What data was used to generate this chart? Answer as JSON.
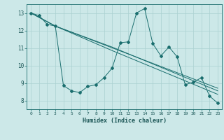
{
  "bg_color": "#cce8e8",
  "grid_color": "#aad0d0",
  "line_color": "#1a6e6e",
  "marker_color": "#1a6e6e",
  "xlabel": "Humidex (Indice chaleur)",
  "xlim": [
    -0.5,
    23.5
  ],
  "ylim": [
    7.5,
    13.5
  ],
  "yticks": [
    8,
    9,
    10,
    11,
    12,
    13
  ],
  "xticks": [
    0,
    1,
    2,
    3,
    4,
    5,
    6,
    7,
    8,
    9,
    10,
    11,
    12,
    13,
    14,
    15,
    16,
    17,
    18,
    19,
    20,
    21,
    22,
    23
  ],
  "series1_x": [
    0,
    1,
    2,
    3,
    4,
    5,
    6,
    7,
    8,
    9,
    10,
    11,
    12,
    13,
    14,
    15,
    16,
    17,
    18,
    19,
    20,
    21,
    22,
    23
  ],
  "series1_y": [
    13.0,
    12.85,
    12.35,
    12.25,
    8.85,
    8.55,
    8.45,
    8.8,
    8.9,
    9.3,
    9.85,
    11.3,
    11.35,
    13.0,
    13.25,
    11.25,
    10.55,
    11.05,
    10.5,
    8.9,
    9.05,
    9.3,
    8.25,
    7.85
  ],
  "series2_x": [
    0,
    3,
    23
  ],
  "series2_y": [
    13.0,
    12.25,
    8.7
  ],
  "series3_x": [
    0,
    3,
    10,
    23
  ],
  "series3_y": [
    13.0,
    12.25,
    11.05,
    8.55
  ],
  "series4_x": [
    0,
    3,
    10,
    23
  ],
  "series4_y": [
    13.0,
    12.25,
    10.85,
    8.35
  ],
  "figsize": [
    3.2,
    2.0
  ],
  "dpi": 100
}
